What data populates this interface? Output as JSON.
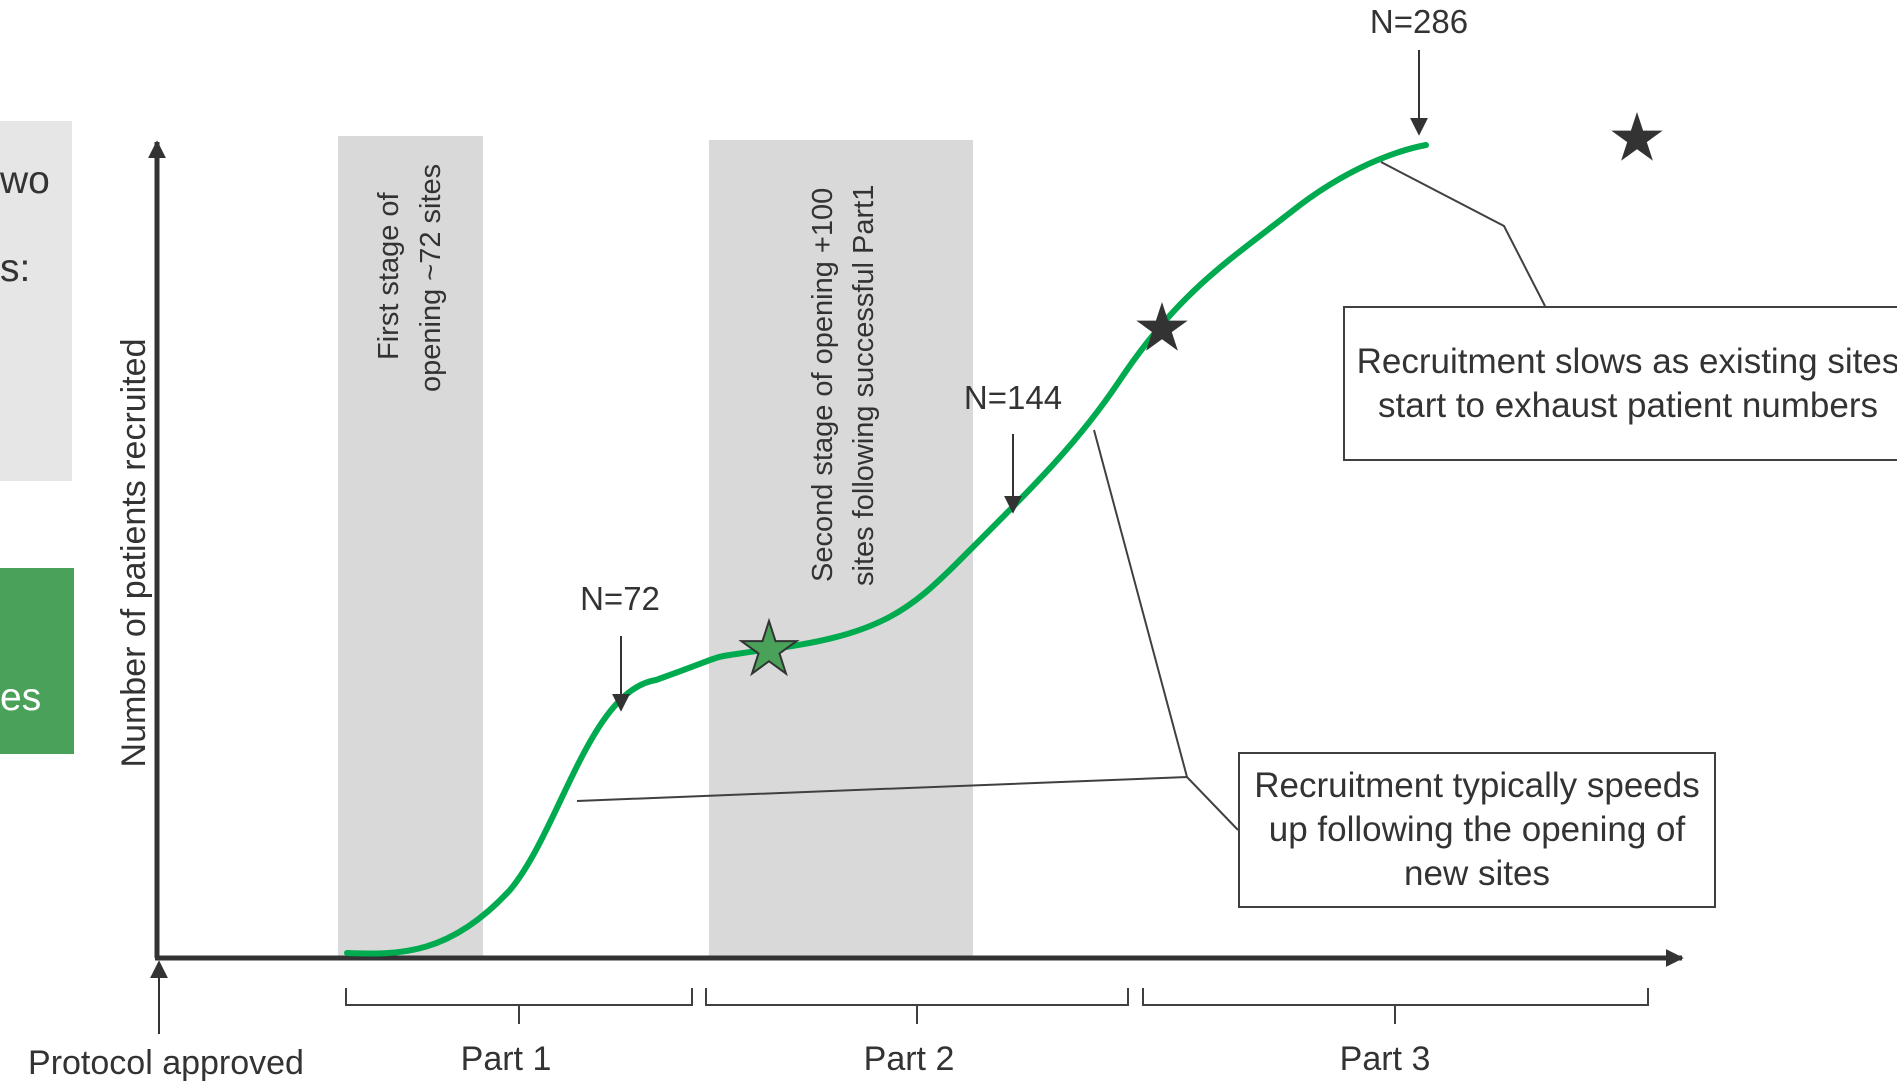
{
  "left_panels": {
    "grey_lines": [
      "wo",
      "s:"
    ],
    "green_lines": [
      "es"
    ]
  },
  "shaded_periods": [
    {
      "label_lines": [
        "First stage of",
        "opening ~72 sites"
      ]
    },
    {
      "label_lines": [
        "Second stage of opening +100",
        "sites following successful Part1"
      ]
    }
  ],
  "axes": {
    "ylabel": "Number of patients recruited",
    "origin_label": "Protocol approved"
  },
  "milestones": [
    {
      "label": "N=72",
      "value": 72
    },
    {
      "label": "N=144",
      "value": 144
    },
    {
      "label": "N=286",
      "value": 286
    }
  ],
  "parts": [
    "Part 1",
    "Part 2",
    "Part 3"
  ],
  "callouts": {
    "slows": "Recruitment slows as existing sites start to exhaust patient numbers",
    "speeds": "Recruitment typically speeds up following the opening of new sites"
  },
  "colors": {
    "curve": "#00aa4f",
    "shade": "#d9d9d9",
    "axis": "#333333",
    "star_green": "#4aa15a",
    "star_dark": "#333333",
    "panel_green": "#4aa15a",
    "panel_grey": "#e6e6e6"
  },
  "icons": [
    "star-icon",
    "arrow-down-icon",
    "arrow-up-icon"
  ]
}
